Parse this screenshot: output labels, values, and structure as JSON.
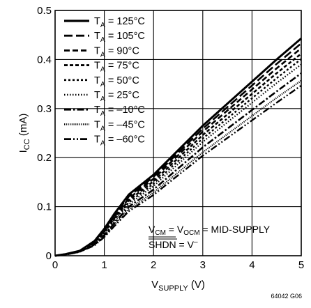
{
  "chart_data": {
    "type": "line",
    "title": "",
    "xlabel": {
      "main": "V",
      "sub": "SUPPLY",
      "suffix": " (V)"
    },
    "ylabel": {
      "main": "I",
      "sub": "CC",
      "suffix": " (mA)"
    },
    "xlim": [
      0,
      5
    ],
    "ylim": [
      0,
      0.5
    ],
    "xticks": [
      "0",
      "1",
      "2",
      "3",
      "4",
      "5"
    ],
    "yticks": [
      "0",
      "0.1",
      "0.2",
      "0.3",
      "0.4",
      "0.5"
    ],
    "grid": true,
    "legend_position": "top-left",
    "series": [
      {
        "name": "T_A = 125°C",
        "legend": {
          "main": "T",
          "sub": "A",
          "rest": " = 125°C"
        },
        "dash": "solid",
        "x": [
          0.0,
          0.2,
          0.5,
          0.8,
          1.0,
          1.2,
          1.5,
          2.0,
          2.5,
          3.0,
          3.5,
          4.0,
          4.5,
          5.0
        ],
        "y": [
          0.0,
          0.003,
          0.01,
          0.03,
          0.055,
          0.085,
          0.125,
          0.165,
          0.215,
          0.265,
          0.31,
          0.355,
          0.4,
          0.443
        ]
      },
      {
        "name": "T_A = 105°C",
        "legend": {
          "main": "T",
          "sub": "A",
          "rest": " = 105°C"
        },
        "dash": "dash-long",
        "x": [
          0.0,
          0.2,
          0.5,
          0.8,
          1.0,
          1.2,
          1.5,
          2.0,
          2.5,
          3.0,
          3.5,
          4.0,
          4.5,
          5.0
        ],
        "y": [
          0.0,
          0.003,
          0.01,
          0.029,
          0.053,
          0.082,
          0.121,
          0.161,
          0.21,
          0.259,
          0.303,
          0.347,
          0.391,
          0.433
        ]
      },
      {
        "name": "T_A = 90°C",
        "legend": {
          "main": "T",
          "sub": "A",
          "rest": " = 90°C"
        },
        "dash": "dash-med",
        "x": [
          0.0,
          0.2,
          0.5,
          0.8,
          1.0,
          1.2,
          1.5,
          2.0,
          2.5,
          3.0,
          3.5,
          4.0,
          4.5,
          5.0
        ],
        "y": [
          0.0,
          0.003,
          0.01,
          0.028,
          0.051,
          0.079,
          0.117,
          0.157,
          0.205,
          0.253,
          0.296,
          0.339,
          0.382,
          0.423
        ]
      },
      {
        "name": "T_A = 75°C",
        "legend": {
          "main": "T",
          "sub": "A",
          "rest": " = 75°C"
        },
        "dash": "dash-short",
        "x": [
          0.0,
          0.2,
          0.5,
          0.8,
          1.0,
          1.2,
          1.5,
          2.0,
          2.5,
          3.0,
          3.5,
          4.0,
          4.5,
          5.0
        ],
        "y": [
          0.0,
          0.003,
          0.009,
          0.027,
          0.049,
          0.076,
          0.113,
          0.152,
          0.199,
          0.246,
          0.288,
          0.33,
          0.372,
          0.412
        ]
      },
      {
        "name": "T_A = 50°C",
        "legend": {
          "main": "T",
          "sub": "A",
          "rest": " = 50°C"
        },
        "dash": "dash-tiny",
        "x": [
          0.0,
          0.2,
          0.5,
          0.8,
          1.0,
          1.2,
          1.5,
          2.0,
          2.5,
          3.0,
          3.5,
          4.0,
          4.5,
          5.0
        ],
        "y": [
          0.0,
          0.003,
          0.009,
          0.026,
          0.047,
          0.073,
          0.109,
          0.147,
          0.193,
          0.239,
          0.28,
          0.321,
          0.362,
          0.401
        ]
      },
      {
        "name": "T_A = 25°C",
        "legend": {
          "main": "T",
          "sub": "A",
          "rest": " = 25°C"
        },
        "dash": "dot",
        "x": [
          0.0,
          0.2,
          0.5,
          0.8,
          1.0,
          1.2,
          1.5,
          2.0,
          2.5,
          3.0,
          3.5,
          4.0,
          4.5,
          5.0
        ],
        "y": [
          0.0,
          0.002,
          0.009,
          0.025,
          0.045,
          0.07,
          0.105,
          0.142,
          0.187,
          0.232,
          0.272,
          0.312,
          0.352,
          0.39
        ]
      },
      {
        "name": "T_A = –10°C",
        "legend": {
          "main": "T",
          "sub": "A",
          "rest": " = –10°C"
        },
        "dash": "dash-dot",
        "x": [
          0.0,
          0.2,
          0.5,
          0.8,
          1.0,
          1.2,
          1.5,
          2.0,
          2.5,
          3.0,
          3.5,
          4.0,
          4.5,
          5.0
        ],
        "y": [
          0.0,
          0.002,
          0.008,
          0.023,
          0.042,
          0.066,
          0.1,
          0.135,
          0.178,
          0.221,
          0.259,
          0.297,
          0.335,
          0.372
        ]
      },
      {
        "name": "T_A = –45°C",
        "legend": {
          "main": "T",
          "sub": "A",
          "rest": " = –45°C"
        },
        "dash": "dot-dense",
        "x": [
          0.0,
          0.2,
          0.5,
          0.8,
          1.0,
          1.2,
          1.5,
          2.0,
          2.5,
          3.0,
          3.5,
          4.0,
          4.5,
          5.0
        ],
        "y": [
          0.0,
          0.002,
          0.008,
          0.022,
          0.04,
          0.063,
          0.095,
          0.129,
          0.17,
          0.211,
          0.248,
          0.285,
          0.322,
          0.357
        ]
      },
      {
        "name": "T_A = –60°C",
        "legend": {
          "main": "T",
          "sub": "A",
          "rest": " = –60°C"
        },
        "dash": "dash-dot-dot",
        "x": [
          0.0,
          0.2,
          0.5,
          0.8,
          1.0,
          1.2,
          1.5,
          2.0,
          2.5,
          3.0,
          3.5,
          4.0,
          4.5,
          5.0
        ],
        "y": [
          0.0,
          0.002,
          0.008,
          0.021,
          0.038,
          0.06,
          0.091,
          0.124,
          0.164,
          0.204,
          0.24,
          0.276,
          0.312,
          0.347
        ]
      }
    ],
    "annotations": {
      "line1": {
        "p1": "V",
        "p1sub": "CM",
        "p2": " = V",
        "p2sub": "OCM",
        "p3": " = MID-SUPPLY"
      },
      "line2": {
        "over": "SHDN",
        "rest": " = V",
        "sup": "–"
      }
    },
    "figure_id": "64042 G06"
  }
}
